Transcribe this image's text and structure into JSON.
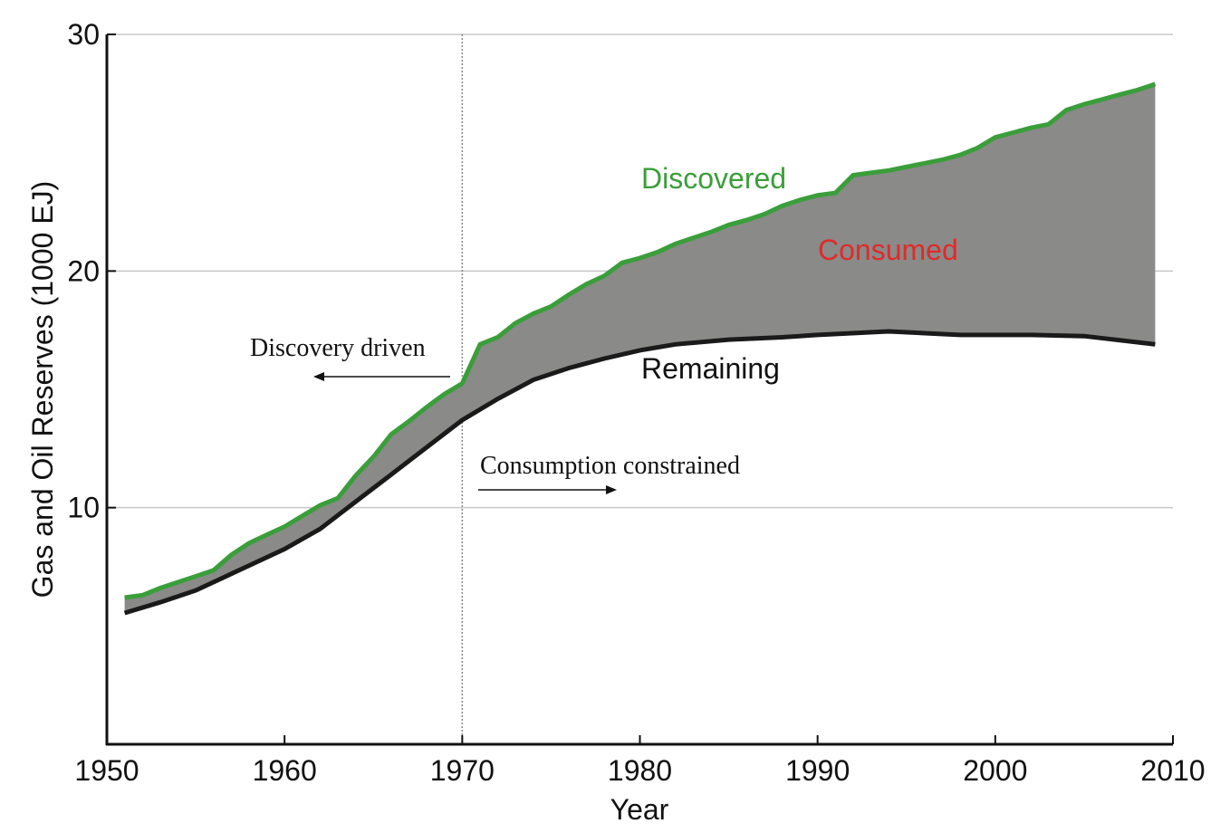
{
  "chart_data": {
    "type": "area",
    "title": "",
    "xlabel": "Year",
    "ylabel": "Gas and Oil Reserves (1000 EJ)",
    "xlim": [
      1950,
      2010
    ],
    "ylim": [
      0,
      30
    ],
    "x_ticks": [
      1950,
      1960,
      1970,
      1980,
      1990,
      2000,
      2010
    ],
    "y_ticks": [
      10,
      20,
      30
    ],
    "grid": "horizontal",
    "colors": {
      "discovered": "#3a9e3a",
      "consumed_fill": "#8a8a88",
      "remaining": "#1a1a1a",
      "consumed_label": "#e02a2a"
    },
    "series": [
      {
        "name": "Discovered",
        "x": [
          1951,
          1952,
          1953,
          1954,
          1955,
          1956,
          1957,
          1958,
          1959,
          1960,
          1961,
          1962,
          1963,
          1964,
          1965,
          1966,
          1967,
          1968,
          1969,
          1970,
          1971,
          1972,
          1973,
          1974,
          1975,
          1976,
          1977,
          1978,
          1979,
          1980,
          1981,
          1982,
          1983,
          1984,
          1985,
          1986,
          1987,
          1988,
          1989,
          1990,
          1991,
          1992,
          1993,
          1994,
          1995,
          1996,
          1997,
          1998,
          1999,
          2000,
          2001,
          2002,
          2003,
          2004,
          2005,
          2006,
          2007,
          2008,
          2009
        ],
        "values": [
          6.2,
          6.3,
          6.6,
          6.85,
          7.1,
          7.35,
          8.0,
          8.5,
          8.85,
          9.2,
          9.65,
          10.1,
          10.4,
          11.35,
          12.15,
          13.1,
          13.65,
          14.25,
          14.8,
          15.25,
          16.9,
          17.2,
          17.8,
          18.2,
          18.5,
          19.0,
          19.45,
          19.8,
          20.35,
          20.55,
          20.8,
          21.15,
          21.4,
          21.65,
          21.95,
          22.15,
          22.4,
          22.75,
          23.0,
          23.2,
          23.3,
          24.05,
          24.15,
          24.25,
          24.4,
          24.55,
          24.7,
          24.9,
          25.2,
          25.65,
          25.85,
          26.05,
          26.2,
          26.8,
          27.05,
          27.25,
          27.45,
          27.65,
          27.9
        ]
      },
      {
        "name": "Remaining",
        "x": [
          1951,
          1953,
          1955,
          1957,
          1960,
          1962,
          1964,
          1966,
          1968,
          1970,
          1972,
          1974,
          1976,
          1978,
          1980,
          1982,
          1985,
          1988,
          1990,
          1994,
          1998,
          2002,
          2005,
          2009
        ],
        "values": [
          5.55,
          6.0,
          6.5,
          7.2,
          8.25,
          9.1,
          10.25,
          11.4,
          12.55,
          13.7,
          14.6,
          15.4,
          15.9,
          16.3,
          16.65,
          16.9,
          17.1,
          17.2,
          17.3,
          17.45,
          17.3,
          17.3,
          17.25,
          16.9
        ]
      }
    ],
    "annotations": {
      "discovered": "Discovered",
      "consumed": "Consumed",
      "remaining": "Remaining",
      "discovery_driven": "Discovery driven",
      "consumption_constrained": "Consumption constrained",
      "divider_year": 1970
    }
  }
}
